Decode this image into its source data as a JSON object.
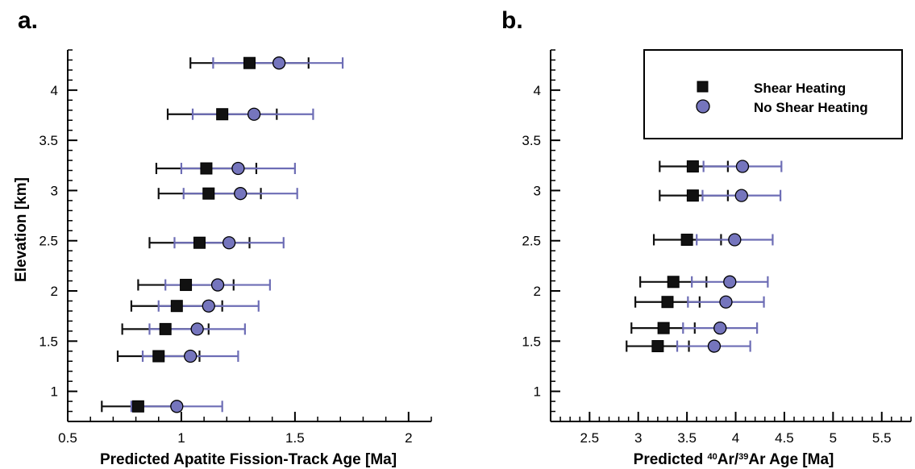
{
  "colors": {
    "shear": "#111111",
    "no_shear": "#6d6db5",
    "no_shear_marker": "#7575bd",
    "axis": "#000000"
  },
  "chart_data": [
    {
      "type": "scatter",
      "panel_label": "a.",
      "title": "",
      "xlabel": "Predicted Apatite Fission-Track Age [Ma]",
      "ylabel": "Elevation [km]",
      "xlim": [
        0.5,
        2.1
      ],
      "ylim": [
        0.7,
        4.4
      ],
      "xticks": [
        0.5,
        1,
        1.5,
        2
      ],
      "xtick_labels": [
        "0.5",
        "1",
        "1.5",
        "2"
      ],
      "yticks": [
        1,
        1.5,
        2,
        2.5,
        3,
        3.5,
        4
      ],
      "ytick_labels": [
        "1",
        "1.5",
        "2",
        "2.5",
        "3",
        "3.5",
        "4"
      ],
      "x_minor_step": 0.1,
      "y_minor_step": 0.1,
      "grid": false,
      "legend": null,
      "series": [
        {
          "name": "Shear Heating",
          "marker": "square",
          "points": [
            {
              "y": 4.27,
              "x": 1.3,
              "xerr": [
                1.04,
                1.56
              ]
            },
            {
              "y": 3.76,
              "x": 1.18,
              "xerr": [
                0.94,
                1.42
              ]
            },
            {
              "y": 3.22,
              "x": 1.11,
              "xerr": [
                0.89,
                1.33
              ]
            },
            {
              "y": 2.97,
              "x": 1.12,
              "xerr": [
                0.9,
                1.35
              ]
            },
            {
              "y": 2.48,
              "x": 1.08,
              "xerr": [
                0.86,
                1.3
              ]
            },
            {
              "y": 2.06,
              "x": 1.02,
              "xerr": [
                0.81,
                1.23
              ]
            },
            {
              "y": 1.85,
              "x": 0.98,
              "xerr": [
                0.78,
                1.18
              ]
            },
            {
              "y": 1.62,
              "x": 0.93,
              "xerr": [
                0.74,
                1.12
              ]
            },
            {
              "y": 1.35,
              "x": 0.9,
              "xerr": [
                0.72,
                1.08
              ]
            },
            {
              "y": 0.85,
              "x": 0.81,
              "xerr": [
                0.65,
                0.98
              ]
            }
          ]
        },
        {
          "name": "No Shear Heating",
          "marker": "circle",
          "points": [
            {
              "y": 4.27,
              "x": 1.43,
              "xerr": [
                1.14,
                1.71
              ]
            },
            {
              "y": 3.76,
              "x": 1.32,
              "xerr": [
                1.05,
                1.58
              ]
            },
            {
              "y": 3.22,
              "x": 1.25,
              "xerr": [
                1.0,
                1.5
              ]
            },
            {
              "y": 2.97,
              "x": 1.26,
              "xerr": [
                1.01,
                1.51
              ]
            },
            {
              "y": 2.48,
              "x": 1.21,
              "xerr": [
                0.97,
                1.45
              ]
            },
            {
              "y": 2.06,
              "x": 1.16,
              "xerr": [
                0.93,
                1.39
              ]
            },
            {
              "y": 1.85,
              "x": 1.12,
              "xerr": [
                0.9,
                1.34
              ]
            },
            {
              "y": 1.62,
              "x": 1.07,
              "xerr": [
                0.86,
                1.28
              ]
            },
            {
              "y": 1.35,
              "x": 1.04,
              "xerr": [
                0.83,
                1.25
              ]
            },
            {
              "y": 0.85,
              "x": 0.98,
              "xerr": [
                0.78,
                1.18
              ]
            }
          ]
        }
      ]
    },
    {
      "type": "scatter",
      "panel_label": "b.",
      "title": "",
      "xlabel_parts": [
        {
          "t": "Predicted ",
          "sup": false
        },
        {
          "t": "40",
          "sup": true
        },
        {
          "t": "Ar/",
          "sup": false
        },
        {
          "t": "39",
          "sup": true
        },
        {
          "t": "Ar Age [Ma]",
          "sup": false
        }
      ],
      "ylabel": "",
      "xlim": [
        2.1,
        5.8
      ],
      "ylim": [
        0.7,
        4.4
      ],
      "xticks": [
        2.5,
        3,
        3.5,
        4,
        4.5,
        5,
        5.5
      ],
      "xtick_labels": [
        "2.5",
        "3",
        "3.5",
        "4",
        "4.5",
        "5",
        "5.5"
      ],
      "yticks": [
        1,
        1.5,
        2,
        2.5,
        3,
        3.5,
        4
      ],
      "ytick_labels": [
        "1",
        "1.5",
        "2",
        "2.5",
        "3",
        "3.5",
        "4"
      ],
      "x_minor_step": 0.1,
      "y_minor_step": 0.1,
      "grid": false,
      "legend": {
        "placement": "top-right",
        "entries": [
          {
            "label": "Shear Heating",
            "marker": "square"
          },
          {
            "label": "No Shear Heating",
            "marker": "circle"
          }
        ]
      },
      "series": [
        {
          "name": "Shear Heating",
          "marker": "square",
          "points": [
            {
              "y": 3.24,
              "x": 3.56,
              "xerr": [
                3.22,
                3.92
              ]
            },
            {
              "y": 2.95,
              "x": 3.56,
              "xerr": [
                3.22,
                3.92
              ]
            },
            {
              "y": 2.51,
              "x": 3.5,
              "xerr": [
                3.16,
                3.85
              ]
            },
            {
              "y": 2.09,
              "x": 3.36,
              "xerr": [
                3.02,
                3.7
              ]
            },
            {
              "y": 1.89,
              "x": 3.3,
              "xerr": [
                2.97,
                3.63
              ]
            },
            {
              "y": 1.63,
              "x": 3.26,
              "xerr": [
                2.93,
                3.58
              ]
            },
            {
              "y": 1.45,
              "x": 3.2,
              "xerr": [
                2.88,
                3.52
              ]
            }
          ]
        },
        {
          "name": "No Shear Heating",
          "marker": "circle",
          "points": [
            {
              "y": 3.24,
              "x": 4.07,
              "xerr": [
                3.67,
                4.47
              ]
            },
            {
              "y": 2.95,
              "x": 4.06,
              "xerr": [
                3.66,
                4.46
              ]
            },
            {
              "y": 2.51,
              "x": 3.99,
              "xerr": [
                3.6,
                4.38
              ]
            },
            {
              "y": 2.09,
              "x": 3.94,
              "xerr": [
                3.55,
                4.33
              ]
            },
            {
              "y": 1.89,
              "x": 3.9,
              "xerr": [
                3.51,
                4.29
              ]
            },
            {
              "y": 1.63,
              "x": 3.84,
              "xerr": [
                3.46,
                4.22
              ]
            },
            {
              "y": 1.45,
              "x": 3.78,
              "xerr": [
                3.4,
                4.15
              ]
            }
          ]
        }
      ]
    }
  ]
}
